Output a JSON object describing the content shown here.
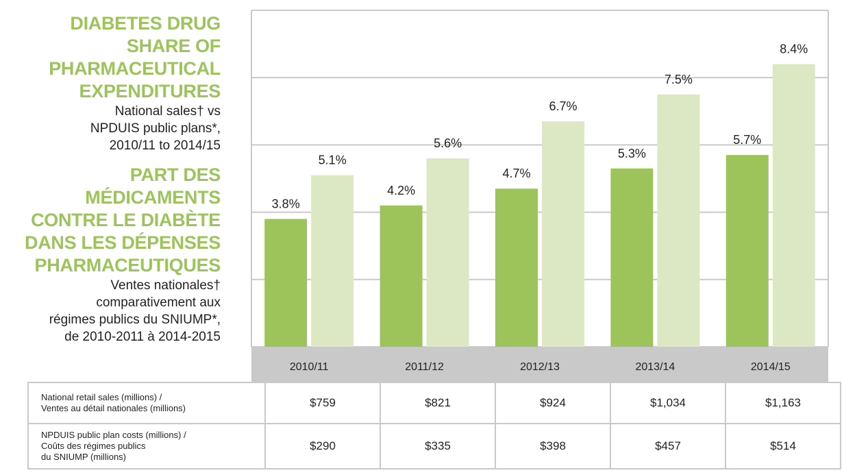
{
  "title_en": "DIABETES DRUG\nSHARE OF\nPHARMACEUTICAL\nEXPENDITURES",
  "subtitle_en": "National sales† vs\nNPDUIS public plans*,\n2010/11 to 2014/15",
  "title_fr": "PART DES\nMÉDICAMENTS\nCONTRE LE DIABÈTE\nDANS LES DÉPENSES\nPHARMACEUTIQUES",
  "subtitle_fr": "Ventes nationales†\ncomparativement aux\nrégimes publics du SNIUMP*,\nde 2010-2011 à 2014-2015",
  "colors": {
    "national": "#9dc45b",
    "public": "#dce8c4",
    "grid": "#c9c9c9",
    "axis_band": "#c9c9c9"
  },
  "chart_data": {
    "type": "bar",
    "categories": [
      "2010/11",
      "2011/12",
      "2012/13",
      "2013/14",
      "2014/15"
    ],
    "series": [
      {
        "values": [
          3.8,
          4.2,
          4.7,
          5.3,
          5.7
        ],
        "labels": [
          "3.8%",
          "4.2%",
          "4.7%",
          "5.3%",
          "5.7%"
        ]
      },
      {
        "values": [
          5.1,
          5.6,
          6.7,
          7.5,
          8.4
        ],
        "labels": [
          "5.1%",
          "5.6%",
          "6.7%",
          "7.5%",
          "8.4%"
        ]
      }
    ],
    "ylim": [
      0,
      10
    ],
    "grid": true
  },
  "table": {
    "rows": [
      {
        "label": "National retail sales (millions) /\nVentes au détail nationales (millions)",
        "values": [
          "$759",
          "$821",
          "$924",
          "$1,034",
          "$1,163"
        ]
      },
      {
        "label": "NPDUIS public plan costs (millions) /\nCoûts des régimes publics\ndu SNIUMP (millions)",
        "values": [
          "$290",
          "$335",
          "$398",
          "$457",
          "$514"
        ]
      }
    ]
  }
}
